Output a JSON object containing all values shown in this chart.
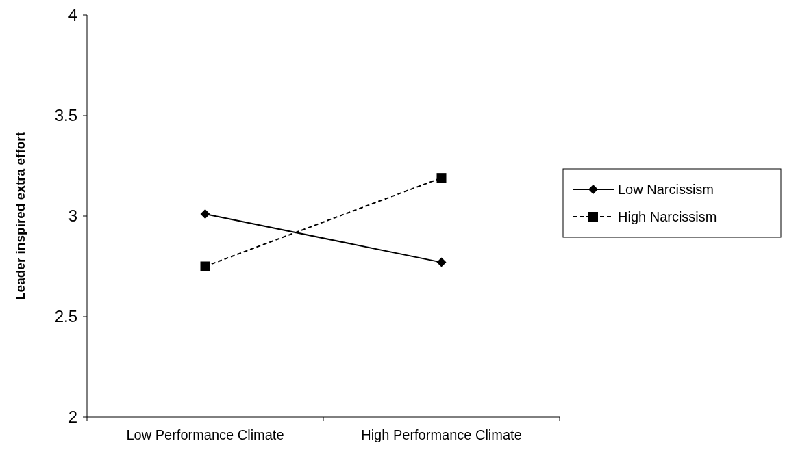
{
  "chart_data": {
    "type": "line",
    "ylabel": "Leader inspired extra effort",
    "categories": [
      "Low Performance Climate",
      "High Performance Climate"
    ],
    "ylim": [
      2,
      4
    ],
    "yticks": [
      2,
      2.5,
      3,
      3.5,
      4
    ],
    "legend": "right",
    "grid": false,
    "series": [
      {
        "name": "Low Narcissism",
        "color": "#000000",
        "values": [
          3.01,
          2.77
        ],
        "marker": "diamond",
        "line_style": "solid"
      },
      {
        "name": "High Narcissism",
        "color": "#000000",
        "values": [
          2.75,
          3.19
        ],
        "marker": "square",
        "line_style": "dashed"
      }
    ]
  }
}
